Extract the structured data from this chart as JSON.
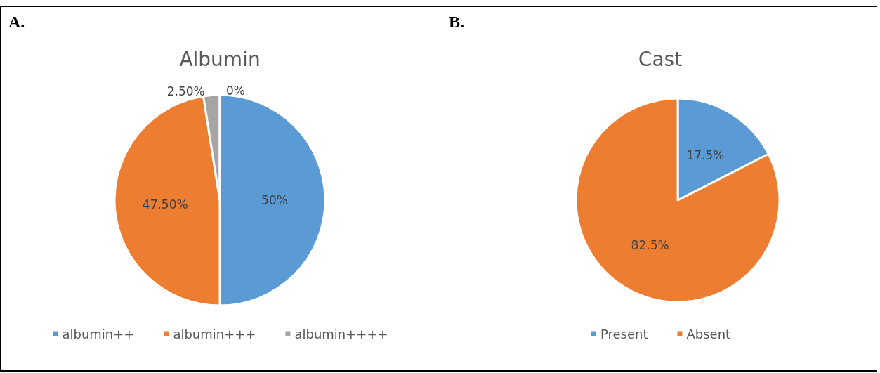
{
  "chart_data": [
    {
      "type": "pie",
      "title": "Albumin",
      "annotations": [
        "A."
      ],
      "categories": [
        "albumin++",
        "albumin+++",
        "albumin++++",
        null
      ],
      "values": [
        50,
        47.5,
        2.5,
        0
      ],
      "value_labels": [
        "50%",
        "47.50%",
        "2.50%",
        "0%"
      ],
      "colors": [
        "#5b9bd5",
        "#ed7d31",
        "#a5a5a5",
        "#4472c4"
      ],
      "legend": "bottom"
    },
    {
      "type": "pie",
      "title": "Cast",
      "annotations": [
        "B."
      ],
      "categories": [
        "Present",
        "Absent"
      ],
      "values": [
        17.5,
        82.5
      ],
      "value_labels": [
        "17.5%",
        "82.5%"
      ],
      "colors": [
        "#5b9bd5",
        "#ed7d31"
      ],
      "legend": "bottom"
    }
  ]
}
